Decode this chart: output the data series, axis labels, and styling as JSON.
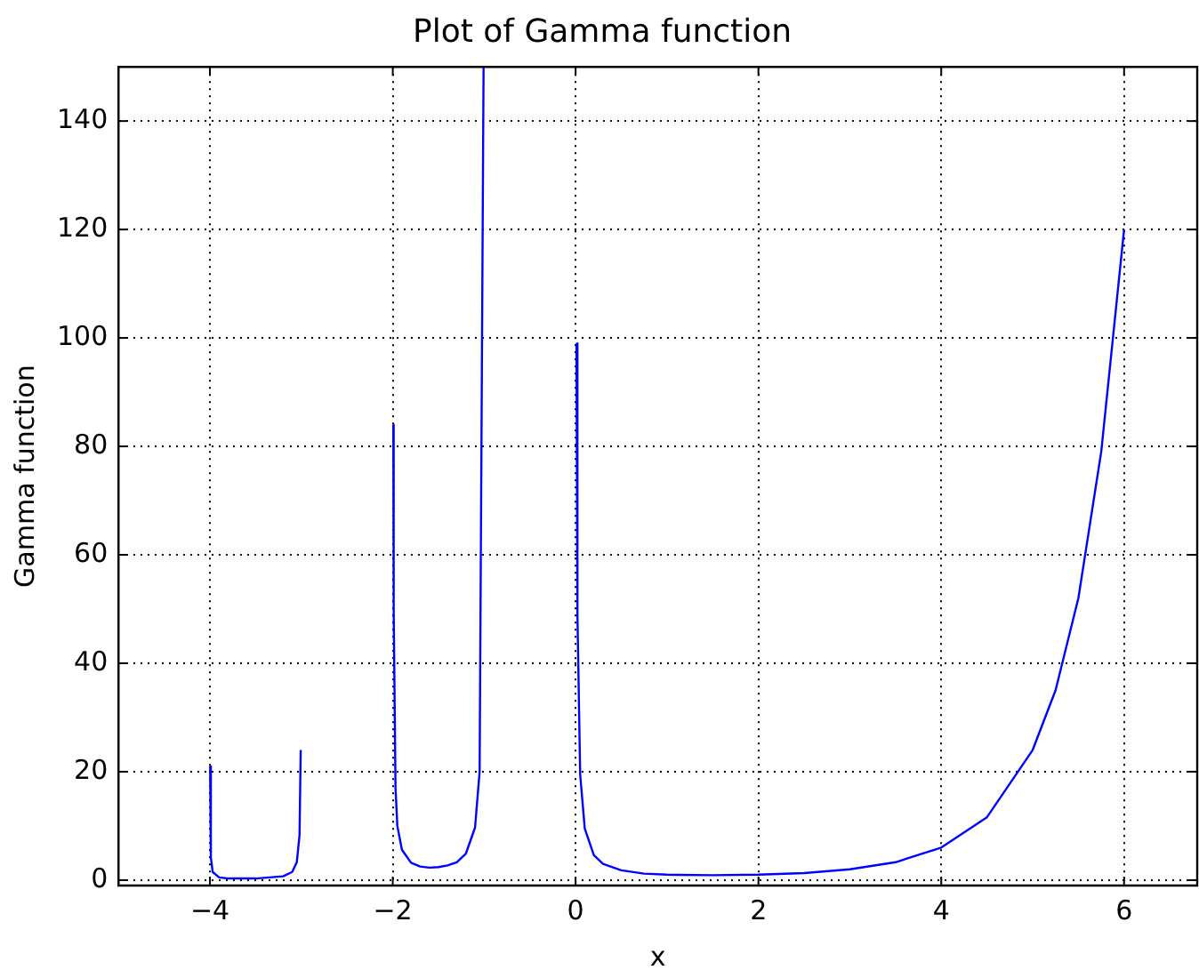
{
  "chart_data": {
    "type": "line",
    "title": "Plot of Gamma function",
    "xlabel": "x",
    "ylabel": "Gamma function",
    "x": [
      -3.998,
      -3.99,
      -3.97,
      -3.9,
      -3.8,
      -3.5,
      -3.2,
      -3.1,
      -3.05,
      -3.02,
      -3.007,
      -3.0,
      -1.994,
      -1.99,
      -1.97,
      -1.95,
      -1.9,
      -1.8,
      -1.7,
      -1.6,
      -1.5,
      -1.4,
      -1.3,
      -1.2,
      -1.1,
      -1.05,
      -1.0067,
      -0.5,
      0.01,
      0.02,
      0.05,
      0.1,
      0.2,
      0.3,
      0.5,
      0.75,
      1,
      1.5,
      2,
      2.5,
      3,
      3.5,
      4,
      4.5,
      5,
      5.25,
      5.5,
      5.75,
      6
    ],
    "series": [
      {
        "color": "#0000ff",
        "values": [
          21,
          4.2,
          1.5,
          0.5,
          0.3,
          0.3,
          0.7,
          1.5,
          3.3,
          8.3,
          24,
          null,
          84,
          50,
          17,
          10,
          5.6,
          3.2,
          2.5,
          2.3,
          2.4,
          2.7,
          3.3,
          4.9,
          9.7,
          20,
          150,
          null,
          99,
          49,
          19.5,
          9.5,
          4.6,
          3,
          1.8,
          1.2,
          1,
          0.9,
          1,
          1.3,
          2,
          3.3,
          6,
          11.6,
          24,
          35,
          52,
          79,
          120
        ]
      }
    ],
    "xlim": [
      -5,
      6.8
    ],
    "ylim": [
      -1,
      150
    ],
    "xticks": [
      {
        "value": -4,
        "label": "−4"
      },
      {
        "value": -2,
        "label": "−2"
      },
      0,
      2,
      4,
      6
    ],
    "yticks": [
      0,
      20,
      40,
      60,
      80,
      100,
      120,
      140
    ],
    "grid": true,
    "legend": false,
    "marker": "none",
    "line_style": "solid"
  }
}
